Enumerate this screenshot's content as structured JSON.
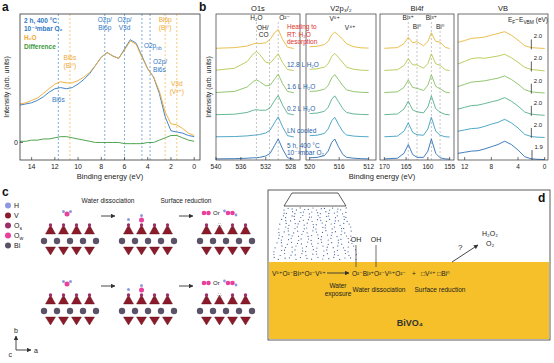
{
  "panel_labels": [
    "a",
    "b",
    "c",
    "d"
  ],
  "chart_data": [
    {
      "type": "line",
      "xlabel": "Binding energy (eV)",
      "ylabel": "Intensity (arb. units)",
      "x": [
        15,
        14.5,
        14,
        13.5,
        13,
        12.5,
        12,
        11.5,
        11,
        10.5,
        10,
        9.5,
        9,
        8.5,
        8,
        7.5,
        7,
        6.5,
        6,
        5.5,
        5,
        4.5,
        4,
        3.5,
        3,
        2.5,
        2,
        1.5,
        1,
        0.5,
        0
      ],
      "xlim": [
        15,
        -0.5
      ],
      "xticks": [
        14,
        12,
        10,
        8,
        6,
        4,
        2,
        0
      ],
      "ylim": [
        -1.5,
        11
      ],
      "yticks": [
        0
      ],
      "series": [
        {
          "name": "2 h, 400 °C\n10⁻³mbar O₂",
          "color": "#2f78c4",
          "values": [
            3.2,
            3.3,
            3.4,
            3.6,
            3.9,
            4.3,
            4.6,
            4.7,
            4.6,
            4.7,
            5.0,
            5.4,
            5.9,
            6.6,
            7.3,
            7.7,
            7.4,
            7.2,
            8.0,
            8.8,
            8.5,
            7.4,
            6.3,
            5.6,
            4.2,
            2.2,
            1.0,
            0.9,
            0.8,
            0.6,
            0.5
          ]
        },
        {
          "name": "H₂O",
          "color": "#f0a830",
          "values": [
            3.3,
            3.4,
            3.6,
            3.8,
            4.2,
            4.6,
            5.0,
            5.2,
            5.1,
            5.1,
            5.3,
            5.6,
            6.0,
            6.6,
            7.3,
            7.7,
            7.4,
            7.2,
            7.9,
            8.7,
            8.4,
            7.3,
            6.3,
            5.6,
            4.4,
            2.6,
            1.6,
            1.5,
            1.2,
            0.8,
            0.6
          ]
        },
        {
          "name": "Difference",
          "color": "#3c9a3c",
          "values": [
            0.1,
            0.1,
            0.2,
            0.2,
            0.3,
            0.3,
            0.4,
            0.5,
            0.5,
            0.4,
            0.3,
            0.2,
            0.1,
            0.0,
            0.0,
            0.0,
            0.0,
            0.0,
            -0.1,
            -0.1,
            -0.1,
            -0.1,
            0.0,
            0.0,
            0.2,
            0.4,
            0.6,
            0.6,
            0.4,
            0.2,
            0.1
          ]
        }
      ],
      "annotations": [
        {
          "text": "Bi6s",
          "x": 11.7,
          "color": "#2f78c4"
        },
        {
          "text": "Bi6s\n(Bi⁰)",
          "x": 10.7,
          "color": "#f0a830"
        },
        {
          "text": "O2p/\nBi6p",
          "x": 7.7,
          "color": "#2f78c4"
        },
        {
          "text": "O2p/\nV3d",
          "x": 6.0,
          "color": "#2f78c4"
        },
        {
          "text": "O2p/\nBi6s",
          "x": 3.8,
          "color": "#2f78c4"
        },
        {
          "text": [
            {
              "t": "O2p"
            },
            {
              "t": "nb",
              "sub": true
            }
          ],
          "x": 4.5,
          "color": "#2f78c4"
        },
        {
          "text": "Bi6p\n(Bi⁰)",
          "x": 2.5,
          "color": "#f0a830"
        },
        {
          "text": "V3d\n(V³⁺)",
          "x": 1.5,
          "color": "#f0a830"
        }
      ]
    },
    {
      "type": "line",
      "xlabel": "Binding energy (eV)",
      "ylabel": "Intensity (arb. units)",
      "ylim": [
        0,
        6.6
      ],
      "tick_labels": "x",
      "series": [
        {
          "name": "Heating to\nRT: H₂O\ndesorption",
          "color": "#e6b83c"
        },
        {
          "name": "12.8 L H₂O",
          "color": "#b8c74e"
        },
        {
          "name": "1.6 L H₂O",
          "color": "#86bf62"
        },
        {
          "name": "0.2 L H₂O",
          "color": "#55b08a"
        },
        {
          "name": "LN cooled",
          "color": "#3d9fbf"
        },
        {
          "name": "5 h, 400 °C\n10⁻³mbar O₂",
          "color": "#2c6fb6"
        }
      ],
      "subplots": [
        {
          "title": "O1s",
          "x": [
            540,
            537,
            535,
            534,
            533.5,
            533,
            532,
            531.3,
            530.6,
            530,
            529.3,
            528.5,
            527.5
          ],
          "xlim": [
            540,
            526.5
          ],
          "xticks": [
            540,
            536,
            532,
            528
          ],
          "values": [
            [
              0.05,
              0.08,
              0.15,
              0.25,
              0.28,
              0.26,
              0.3,
              0.45,
              0.75,
              0.9,
              0.45,
              0.1,
              0.04
            ],
            [
              0.06,
              0.15,
              0.45,
              0.8,
              0.9,
              0.78,
              0.42,
              0.38,
              0.6,
              0.8,
              0.4,
              0.09,
              0.04
            ],
            [
              0.05,
              0.1,
              0.3,
              0.55,
              0.62,
              0.55,
              0.35,
              0.38,
              0.65,
              0.88,
              0.45,
              0.1,
              0.04
            ],
            [
              0.05,
              0.07,
              0.15,
              0.25,
              0.28,
              0.25,
              0.25,
              0.36,
              0.68,
              0.92,
              0.48,
              0.1,
              0.04
            ],
            [
              0.05,
              0.06,
              0.09,
              0.12,
              0.13,
              0.15,
              0.22,
              0.35,
              0.68,
              0.95,
              0.5,
              0.1,
              0.04
            ],
            [
              0.05,
              0.06,
              0.08,
              0.1,
              0.1,
              0.12,
              0.18,
              0.3,
              0.65,
              0.95,
              0.5,
              0.1,
              0.04
            ]
          ],
          "annotations": [
            {
              "text": "H₂O",
              "x": 533.5
            },
            {
              "text": "OH/\nCO",
              "x": 531.4
            },
            {
              "text": "O²⁻",
              "x": 530
            }
          ]
        },
        {
          "title": "V2p₃/₂",
          "x": [
            520,
            519,
            518,
            517.5,
            517,
            516.6,
            516.1,
            515.5,
            515,
            514,
            513,
            512
          ],
          "xlim": [
            520.5,
            511
          ],
          "xticks": [
            520,
            516,
            512
          ],
          "values": [
            [
              0.12,
              0.14,
              0.22,
              0.36,
              0.66,
              0.78,
              0.65,
              0.45,
              0.25,
              0.12,
              0.07,
              0.06
            ],
            [
              0.1,
              0.12,
              0.2,
              0.35,
              0.68,
              0.82,
              0.64,
              0.4,
              0.2,
              0.1,
              0.06,
              0.05
            ],
            [
              0.1,
              0.12,
              0.2,
              0.36,
              0.72,
              0.86,
              0.64,
              0.36,
              0.17,
              0.09,
              0.06,
              0.05
            ],
            [
              0.1,
              0.12,
              0.2,
              0.38,
              0.75,
              0.9,
              0.64,
              0.32,
              0.15,
              0.08,
              0.06,
              0.05
            ],
            [
              0.1,
              0.12,
              0.2,
              0.4,
              0.78,
              0.93,
              0.62,
              0.28,
              0.13,
              0.08,
              0.06,
              0.05
            ],
            [
              0.1,
              0.12,
              0.2,
              0.4,
              0.8,
              0.95,
              0.6,
              0.25,
              0.12,
              0.08,
              0.06,
              0.05
            ]
          ],
          "annotations": [
            {
              "text": "V⁵⁺",
              "x": 516.6
            },
            {
              "text": "V⁴⁺",
              "x": 515.5
            }
          ]
        },
        {
          "title": "Bi4f",
          "x": [
            170,
            167,
            165.5,
            164.5,
            163.5,
            162.5,
            161,
            160,
            159.2,
            158.2,
            157.2,
            156,
            155
          ],
          "xlim": [
            171,
            154
          ],
          "xticks": [
            170,
            165,
            160,
            155
          ],
          "values": [
            [
              0.05,
              0.08,
              0.26,
              0.55,
              0.3,
              0.35,
              0.16,
              0.35,
              0.75,
              0.36,
              0.33,
              0.09,
              0.04
            ],
            [
              0.05,
              0.08,
              0.27,
              0.58,
              0.3,
              0.3,
              0.15,
              0.36,
              0.8,
              0.35,
              0.28,
              0.08,
              0.04
            ],
            [
              0.05,
              0.08,
              0.28,
              0.62,
              0.28,
              0.24,
              0.14,
              0.38,
              0.85,
              0.33,
              0.22,
              0.07,
              0.04
            ],
            [
              0.05,
              0.08,
              0.3,
              0.66,
              0.26,
              0.18,
              0.13,
              0.4,
              0.9,
              0.32,
              0.16,
              0.06,
              0.04
            ],
            [
              0.05,
              0.08,
              0.3,
              0.68,
              0.25,
              0.14,
              0.12,
              0.4,
              0.93,
              0.3,
              0.12,
              0.05,
              0.04
            ],
            [
              0.05,
              0.08,
              0.3,
              0.7,
              0.25,
              0.12,
              0.12,
              0.4,
              0.95,
              0.3,
              0.1,
              0.05,
              0.04
            ]
          ],
          "annotations": [
            {
              "text": "Bi³⁺",
              "x": 164.5
            },
            {
              "text": "Bi⁰",
              "x": 162.5
            },
            {
              "text": "Bi³⁺",
              "x": 159.2
            },
            {
              "text": "Bi⁰",
              "x": 157.2
            }
          ]
        },
        {
          "title": "VB",
          "x": [
            13,
            12,
            11,
            10,
            9,
            8,
            7,
            6,
            5,
            4,
            3,
            2,
            1,
            0
          ],
          "xlim": [
            13,
            -0.5
          ],
          "xticks": [
            12,
            8,
            4,
            0
          ],
          "values": [
            [
              0.32,
              0.4,
              0.5,
              0.52,
              0.56,
              0.64,
              0.72,
              0.8,
              0.64,
              0.42,
              0.17,
              0.08,
              0.06,
              0.04
            ],
            [
              0.34,
              0.46,
              0.58,
              0.62,
              0.6,
              0.65,
              0.7,
              0.78,
              0.62,
              0.42,
              0.19,
              0.09,
              0.06,
              0.03
            ],
            [
              0.32,
              0.42,
              0.52,
              0.55,
              0.58,
              0.64,
              0.7,
              0.8,
              0.64,
              0.43,
              0.18,
              0.08,
              0.05,
              0.03
            ],
            [
              0.3,
              0.38,
              0.46,
              0.48,
              0.55,
              0.63,
              0.7,
              0.82,
              0.66,
              0.44,
              0.17,
              0.07,
              0.04,
              0.02
            ],
            [
              0.3,
              0.36,
              0.42,
              0.44,
              0.52,
              0.62,
              0.7,
              0.84,
              0.68,
              0.45,
              0.16,
              0.06,
              0.03,
              0.02
            ],
            [
              0.3,
              0.35,
              0.4,
              0.42,
              0.5,
              0.6,
              0.7,
              0.85,
              0.7,
              0.45,
              0.15,
              0.05,
              0.03,
              0.02
            ]
          ],
          "annotations": [],
          "vbm": {
            "label": [
              {
                "t": "E"
              },
              {
                "t": "F",
                "sub": true
              },
              {
                "t": "−E"
              },
              {
                "t": "VBM",
                "sub": true
              },
              {
                "t": " (eV)"
              }
            ],
            "values": [
              2.0,
              2.0,
              2.0,
              2.0,
              2.0,
              1.9
            ],
            "value_labels": [
              "2.0",
              "2.0",
              "2.0",
              "2.0",
              "2.0",
              "1.9"
            ]
          }
        }
      ]
    }
  ],
  "diagrams": {
    "c": {
      "legend": [
        {
          "label": "H",
          "color": "#8f97e0"
        },
        {
          "label": "V",
          "color": "#8b1a2a"
        },
        {
          "label": [
            {
              "t": "O"
            },
            {
              "t": "s",
              "sub": true
            }
          ],
          "color": "#9c2f6a"
        },
        {
          "label": [
            {
              "t": "O"
            },
            {
              "t": "w",
              "sub": true
            }
          ],
          "color": "#e8409c"
        },
        {
          "label": "Bi",
          "color": "#5b5268"
        }
      ],
      "steps": [
        "Water dissociation",
        "Surface reduction"
      ],
      "or_texts": [
        "Or",
        "Or"
      ],
      "axes": [
        "b",
        "c",
        "a"
      ]
    },
    "d": {
      "sequence": [
        "V⁵⁺O²⁻Bi³⁺O²⁻V⁵⁺",
        "O²⁻Bi³⁺O²⁻V⁵⁺O²⁻",
        "+",
        "□V⁴⁺ □Bi⁰"
      ],
      "surface_groups": [
        "OH",
        "OH"
      ],
      "steps": [
        "Water\nexposure",
        "Water dissociation",
        "Surface reduction"
      ],
      "products": [
        "H₂O₂",
        "O₂"
      ],
      "question": "?",
      "material": "BiVO₄"
    }
  }
}
